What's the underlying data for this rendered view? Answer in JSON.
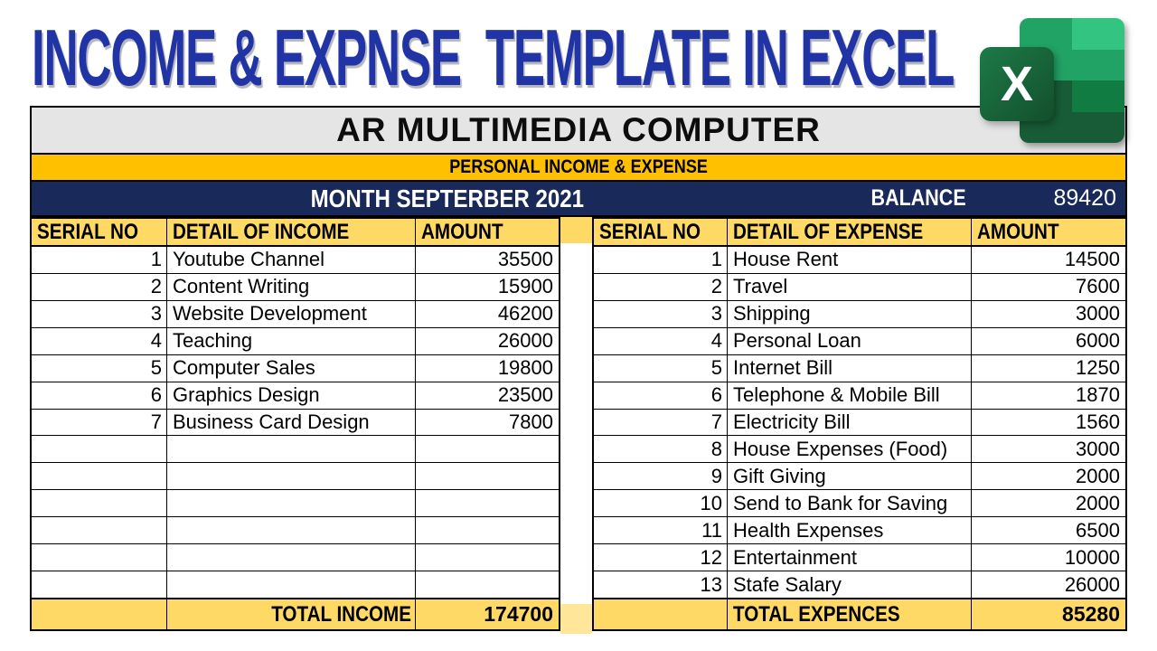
{
  "page": {
    "title": "INCOME & EXPNSE  TEMPLATE IN EXCEL"
  },
  "icon": {
    "name": "excel-icon",
    "letter": "X"
  },
  "header": {
    "company": "AR MULTIMEDIA COMPUTER",
    "subtitle": "PERSONAL INCOME & EXPENSE",
    "month_label": "MONTH SEPTERBER 2021",
    "balance_label": "BALANCE",
    "balance_value": "89420"
  },
  "income_table": {
    "headers": [
      "SERIAL NO",
      "DETAIL OF INCOME",
      "AMOUNT"
    ],
    "rows": [
      [
        "1",
        "Youtube Channel",
        "35500"
      ],
      [
        "2",
        "Content Writing",
        "15900"
      ],
      [
        "3",
        "Website Development",
        "46200"
      ],
      [
        "4",
        "Teaching",
        "26000"
      ],
      [
        "5",
        "Computer Sales",
        "19800"
      ],
      [
        "6",
        "Graphics Design",
        "23500"
      ],
      [
        "7",
        "Business Card Design",
        "7800"
      ],
      [
        "",
        "",
        ""
      ],
      [
        "",
        "",
        ""
      ],
      [
        "",
        "",
        ""
      ],
      [
        "",
        "",
        ""
      ],
      [
        "",
        "",
        ""
      ],
      [
        "",
        "",
        ""
      ]
    ],
    "total_label": "TOTAL INCOME",
    "total_value": "174700"
  },
  "expense_table": {
    "headers": [
      "SERIAL NO",
      "DETAIL OF EXPENSE",
      "AMOUNT"
    ],
    "rows": [
      [
        "1",
        "House Rent",
        "14500"
      ],
      [
        "2",
        "Travel",
        "7600"
      ],
      [
        "3",
        "Shipping",
        "3000"
      ],
      [
        "4",
        "Personal Loan",
        "6000"
      ],
      [
        "5",
        "Internet Bill",
        "1250"
      ],
      [
        "6",
        "Telephone & Mobile Bill",
        "1870"
      ],
      [
        "7",
        "Electricity Bill",
        "1560"
      ],
      [
        "8",
        "House Expenses (Food)",
        "3000"
      ],
      [
        "9",
        "Gift Giving",
        "2000"
      ],
      [
        "10",
        "Send to Bank for Saving",
        "2000"
      ],
      [
        "11",
        "Health Expenses",
        "6500"
      ],
      [
        "12",
        "Entertainment",
        "10000"
      ],
      [
        "13",
        "Stafe Salary",
        "26000"
      ]
    ],
    "total_label": "TOTAL EXPENCES",
    "total_value": "85280"
  },
  "colors": {
    "title_blue": "#2134A6",
    "gold_bar": "#FFC000",
    "header_gold": "#FFD966",
    "pale_gold": "#FFE699",
    "navy": "#192A5A",
    "gray_header": "#E5E5E5",
    "excel_green_light": "#33C481",
    "excel_green": "#21A366",
    "excel_green_mid": "#107C41",
    "excel_green_dark": "#185C37"
  }
}
